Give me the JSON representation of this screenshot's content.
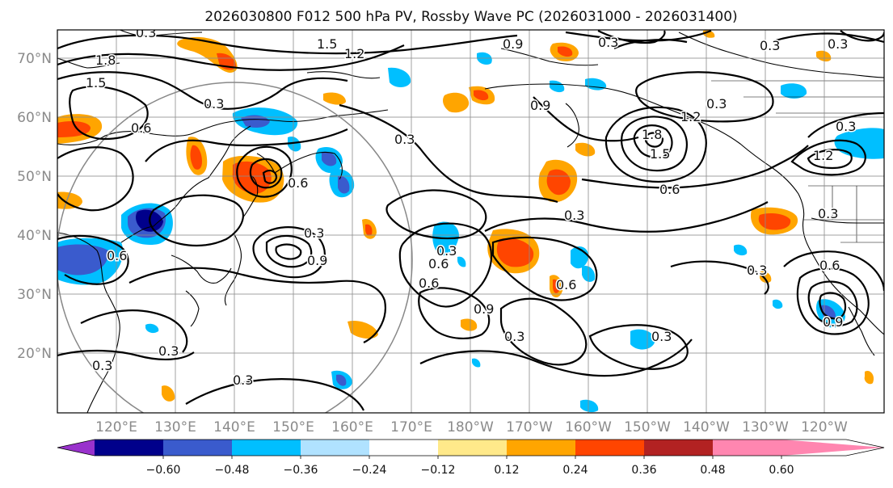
{
  "title": "2026030800 F012 500 hPa PV, Rossby Wave PC (2026031000 - 2026031400)",
  "lat_labels": [
    "70°N",
    "60°N",
    "50°N",
    "40°N",
    "30°N",
    "20°N"
  ],
  "lon_labels": [
    "120°E",
    "130°E",
    "140°E",
    "150°E",
    "160°E",
    "170°E",
    "180°W",
    "170°W",
    "160°W",
    "150°W",
    "140°W",
    "130°W",
    "120°W"
  ],
  "colorbar": {
    "colors": [
      "#9932cc",
      "#00008b",
      "#3a5bcd",
      "#00bfff",
      "#b0e2ff",
      "#ffffff",
      "#ffe98a",
      "#ffa500",
      "#ff4500",
      "#b22222",
      "#ff86b0"
    ],
    "tick_labels": [
      "−0.60",
      "−0.48",
      "−0.36",
      "−0.24",
      "−0.12",
      "0.12",
      "0.24",
      "0.36",
      "0.48",
      "0.60"
    ]
  },
  "contour_labels": [
    "0.3",
    "1.5",
    "1.2",
    "0.9",
    "0.3",
    "1.8",
    "1.5",
    "0.6",
    "0.3",
    "0.3",
    "1.2",
    "0.9",
    "0.3",
    "0.6",
    "0.3",
    "0.3",
    "0.6",
    "0.3",
    "0.6",
    "0.6",
    "0.6",
    "0.9",
    "0.3",
    "0.3",
    "0.3",
    "0.3",
    "0.6",
    "1.2",
    "0.3",
    "0.3",
    "0.3",
    "1.8",
    "1.5",
    "0.6",
    "0.9",
    "0.9",
    "0.3",
    "0.3",
    "0.3"
  ]
}
